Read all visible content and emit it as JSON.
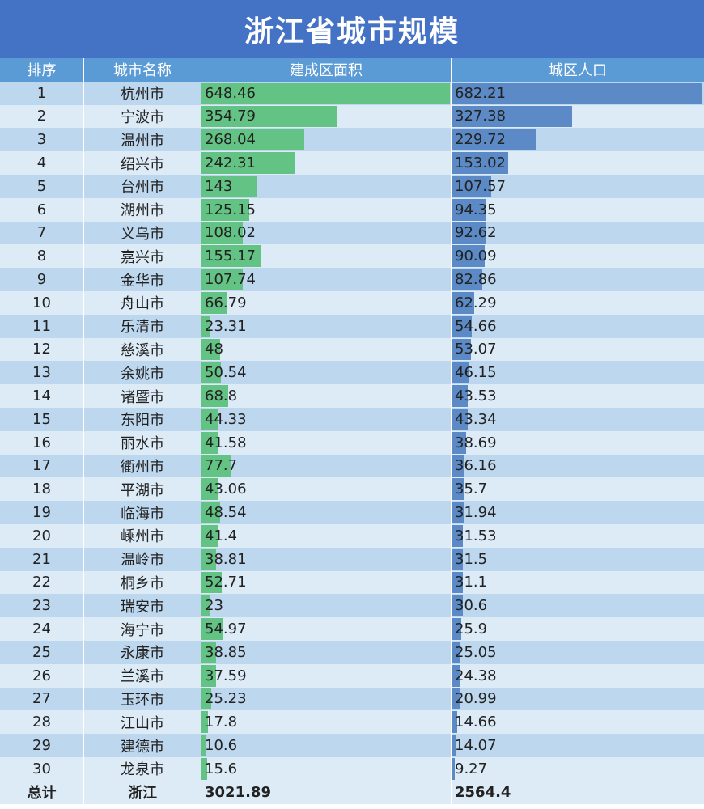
{
  "title": "浙江省城市规模",
  "colors": {
    "title_bg": "#4472c4",
    "header_bg": "#5b9bd5",
    "area_bar": "#63c384",
    "pop_bar": "#5b8ac6",
    "row_odd": "#bdd7ee",
    "row_even": "#ddebf7"
  },
  "headers": {
    "rank": "排序",
    "city": "城市名称",
    "area": "建成区面积",
    "pop": "城区人口"
  },
  "chart_data": {
    "type": "table",
    "columns": [
      "排序",
      "城市名称",
      "建成区面积",
      "城区人口"
    ],
    "rows": [
      {
        "rank": "1",
        "city": "杭州市",
        "area": "648.46",
        "pop": "682.21"
      },
      {
        "rank": "2",
        "city": "宁波市",
        "area": "354.79",
        "pop": "327.38"
      },
      {
        "rank": "3",
        "city": "温州市",
        "area": "268.04",
        "pop": "229.72"
      },
      {
        "rank": "4",
        "city": "绍兴市",
        "area": "242.31",
        "pop": "153.02"
      },
      {
        "rank": "5",
        "city": "台州市",
        "area": "143",
        "pop": "107.57"
      },
      {
        "rank": "6",
        "city": "湖州市",
        "area": "125.15",
        "pop": "94.35"
      },
      {
        "rank": "7",
        "city": "义乌市",
        "area": "108.02",
        "pop": "92.62"
      },
      {
        "rank": "8",
        "city": "嘉兴市",
        "area": "155.17",
        "pop": "90.09"
      },
      {
        "rank": "9",
        "city": "金华市",
        "area": "107.74",
        "pop": "82.86"
      },
      {
        "rank": "10",
        "city": "舟山市",
        "area": "66.79",
        "pop": "62.29"
      },
      {
        "rank": "11",
        "city": "乐清市",
        "area": "23.31",
        "pop": "54.66"
      },
      {
        "rank": "12",
        "city": "慈溪市",
        "area": "48",
        "pop": "53.07"
      },
      {
        "rank": "13",
        "city": "余姚市",
        "area": "50.54",
        "pop": "46.15"
      },
      {
        "rank": "14",
        "city": "诸暨市",
        "area": "68.8",
        "pop": "43.53"
      },
      {
        "rank": "15",
        "city": "东阳市",
        "area": "44.33",
        "pop": "43.34"
      },
      {
        "rank": "16",
        "city": "丽水市",
        "area": "41.58",
        "pop": "38.69"
      },
      {
        "rank": "17",
        "city": "衢州市",
        "area": "77.7",
        "pop": "36.16"
      },
      {
        "rank": "18",
        "city": "平湖市",
        "area": "43.06",
        "pop": "35.7"
      },
      {
        "rank": "19",
        "city": "临海市",
        "area": "48.54",
        "pop": "31.94"
      },
      {
        "rank": "20",
        "city": "嵊州市",
        "area": "41.4",
        "pop": "31.53"
      },
      {
        "rank": "21",
        "city": "温岭市",
        "area": "38.81",
        "pop": "31.5"
      },
      {
        "rank": "22",
        "city": "桐乡市",
        "area": "52.71",
        "pop": "31.1"
      },
      {
        "rank": "23",
        "city": "瑞安市",
        "area": "23",
        "pop": "30.6"
      },
      {
        "rank": "24",
        "city": "海宁市",
        "area": "54.97",
        "pop": "25.9"
      },
      {
        "rank": "25",
        "city": "永康市",
        "area": "38.85",
        "pop": "25.05"
      },
      {
        "rank": "26",
        "city": "兰溪市",
        "area": "37.59",
        "pop": "24.38"
      },
      {
        "rank": "27",
        "city": "玉环市",
        "area": "25.23",
        "pop": "20.99"
      },
      {
        "rank": "28",
        "city": "江山市",
        "area": "17.8",
        "pop": "14.66"
      },
      {
        "rank": "29",
        "city": "建德市",
        "area": "10.6",
        "pop": "14.07"
      },
      {
        "rank": "30",
        "city": "龙泉市",
        "area": "15.6",
        "pop": "9.27"
      }
    ],
    "total": {
      "rank": "总计",
      "city": "浙江",
      "area": "3021.89",
      "pop": "2564.4"
    }
  }
}
